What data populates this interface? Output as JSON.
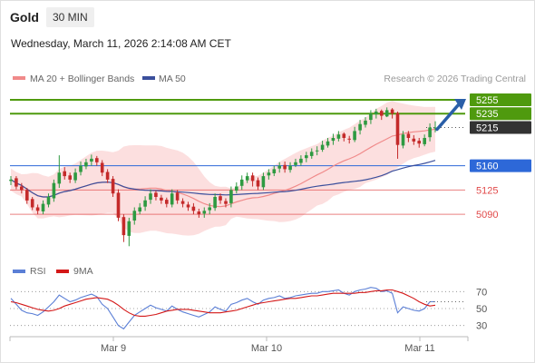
{
  "header": {
    "title": "Gold",
    "timeframe": "30 MIN",
    "datetime": "Wednesday, March 11, 2026 2:14:08 AM CET"
  },
  "colors": {
    "resistance_green": "#4f9a0e",
    "support_blue": "#2d68d8",
    "support_red": "#e14a4a",
    "candle_up": "#2e9a41",
    "candle_down": "#c42a2a",
    "bollinger_fill": "#fbd9d9",
    "ma20": "#f08a8a",
    "ma50": "#3b4f9c",
    "rsi": "#5b7fd6",
    "rsi_ma": "#d41818",
    "price_tag": "#333333",
    "arrow": "#2a5fa8"
  },
  "chart_data": [
    {
      "type": "candlestick",
      "legend": [
        "MA 20 + Bollinger Bands",
        "MA 50"
      ],
      "watermark": "Research © 2026 Trading Central",
      "x_ticks": [
        "Mar 9",
        "Mar 10",
        "Mar 11"
      ],
      "price_levels": [
        {
          "value": 5255,
          "label": "5255",
          "kind": "resistance"
        },
        {
          "value": 5235,
          "label": "5235",
          "kind": "resistance"
        },
        {
          "value": 5215,
          "label": "5215",
          "kind": "last"
        },
        {
          "value": 5160,
          "label": "5160",
          "kind": "pivot"
        },
        {
          "value": 5125,
          "label": "5125",
          "kind": "support"
        },
        {
          "value": 5090,
          "label": "5090",
          "kind": "support"
        }
      ],
      "target_arrow": {
        "from_price": 5215,
        "to_price": 5255
      },
      "ylim": [
        5030,
        5268
      ],
      "close": [
        5140,
        5130,
        5125,
        5110,
        5100,
        5095,
        5105,
        5115,
        5135,
        5150,
        5145,
        5140,
        5150,
        5160,
        5165,
        5170,
        5165,
        5150,
        5140,
        5120,
        5085,
        5060,
        5080,
        5095,
        5100,
        5110,
        5120,
        5115,
        5110,
        5105,
        5120,
        5110,
        5105,
        5100,
        5095,
        5090,
        5095,
        5100,
        5115,
        5110,
        5105,
        5125,
        5130,
        5140,
        5145,
        5138,
        5130,
        5145,
        5150,
        5155,
        5160,
        5155,
        5160,
        5165,
        5170,
        5175,
        5180,
        5182,
        5190,
        5195,
        5200,
        5205,
        5200,
        5198,
        5210,
        5220,
        5225,
        5235,
        5238,
        5232,
        5240,
        5235,
        5190,
        5205,
        5200,
        5195,
        5192,
        5200,
        5215,
        5215
      ],
      "open": [
        5138,
        5142,
        5130,
        5125,
        5112,
        5100,
        5094,
        5104,
        5113,
        5134,
        5152,
        5146,
        5139,
        5151,
        5159,
        5166,
        5171,
        5164,
        5151,
        5141,
        5121,
        5086,
        5059,
        5081,
        5094,
        5101,
        5111,
        5121,
        5114,
        5111,
        5104,
        5121,
        5109,
        5104,
        5101,
        5094,
        5091,
        5096,
        5099,
        5116,
        5109,
        5106,
        5124,
        5131,
        5139,
        5146,
        5139,
        5129,
        5146,
        5149,
        5156,
        5161,
        5154,
        5161,
        5164,
        5171,
        5174,
        5181,
        5183,
        5189,
        5196,
        5199,
        5206,
        5199,
        5197,
        5211,
        5219,
        5226,
        5234,
        5239,
        5231,
        5241,
        5236,
        5189,
        5206,
        5199,
        5196,
        5191,
        5201,
        5214
      ],
      "high": [
        5145,
        5145,
        5135,
        5128,
        5115,
        5104,
        5110,
        5120,
        5140,
        5175,
        5158,
        5150,
        5156,
        5166,
        5170,
        5176,
        5174,
        5168,
        5155,
        5145,
        5126,
        5090,
        5085,
        5100,
        5106,
        5116,
        5126,
        5124,
        5118,
        5114,
        5126,
        5125,
        5113,
        5108,
        5106,
        5098,
        5100,
        5106,
        5120,
        5120,
        5113,
        5130,
        5136,
        5146,
        5150,
        5150,
        5143,
        5150,
        5155,
        5160,
        5165,
        5166,
        5165,
        5170,
        5175,
        5180,
        5185,
        5188,
        5196,
        5200,
        5206,
        5210,
        5208,
        5203,
        5216,
        5226,
        5230,
        5240,
        5242,
        5241,
        5244,
        5243,
        5238,
        5210,
        5210,
        5204,
        5200,
        5205,
        5221,
        5224
      ],
      "low": [
        5132,
        5126,
        5120,
        5105,
        5096,
        5090,
        5090,
        5100,
        5108,
        5128,
        5140,
        5135,
        5135,
        5146,
        5155,
        5160,
        5160,
        5145,
        5135,
        5115,
        5080,
        5050,
        5044,
        5075,
        5090,
        5095,
        5105,
        5110,
        5105,
        5100,
        5100,
        5105,
        5100,
        5095,
        5090,
        5085,
        5085,
        5090,
        5095,
        5105,
        5100,
        5100,
        5120,
        5125,
        5135,
        5130,
        5125,
        5125,
        5140,
        5145,
        5150,
        5150,
        5150,
        5158,
        5160,
        5165,
        5170,
        5175,
        5180,
        5186,
        5190,
        5195,
        5195,
        5192,
        5194,
        5205,
        5215,
        5220,
        5228,
        5226,
        5230,
        5228,
        5170,
        5185,
        5194,
        5190,
        5186,
        5188,
        5195,
        5208
      ]
    },
    {
      "type": "line",
      "legend": [
        "RSI",
        "9MA"
      ],
      "y_ticks": [
        70,
        50,
        30
      ],
      "ylim": [
        20,
        80
      ],
      "series": [
        {
          "name": "RSI",
          "values": [
            62,
            55,
            48,
            45,
            44,
            42,
            46,
            52,
            58,
            66,
            62,
            58,
            60,
            63,
            65,
            67,
            64,
            55,
            50,
            40,
            30,
            26,
            34,
            42,
            46,
            50,
            54,
            51,
            49,
            47,
            53,
            49,
            46,
            44,
            42,
            40,
            43,
            46,
            52,
            49,
            47,
            55,
            57,
            60,
            62,
            58,
            55,
            60,
            62,
            63,
            65,
            62,
            63,
            65,
            66,
            67,
            68,
            68,
            70,
            70,
            71,
            72,
            68,
            66,
            70,
            72,
            73,
            75,
            74,
            70,
            71,
            68,
            45,
            52,
            50,
            48,
            47,
            50,
            58,
            58
          ]
        },
        {
          "name": "9MA",
          "values": [
            58,
            57,
            55,
            53,
            51,
            49,
            48,
            47,
            48,
            50,
            53,
            55,
            57,
            59,
            61,
            62,
            63,
            62,
            61,
            58,
            54,
            49,
            45,
            42,
            41,
            41,
            42,
            43,
            45,
            47,
            48,
            49,
            49,
            49,
            48,
            47,
            46,
            45,
            45,
            45,
            46,
            47,
            48,
            50,
            52,
            54,
            56,
            57,
            58,
            59,
            60,
            61,
            62,
            62,
            63,
            64,
            65,
            65,
            66,
            67,
            68,
            68,
            68,
            68,
            68,
            69,
            69,
            70,
            71,
            71,
            72,
            72,
            70,
            68,
            65,
            62,
            58,
            55,
            53,
            54
          ]
        }
      ]
    }
  ]
}
